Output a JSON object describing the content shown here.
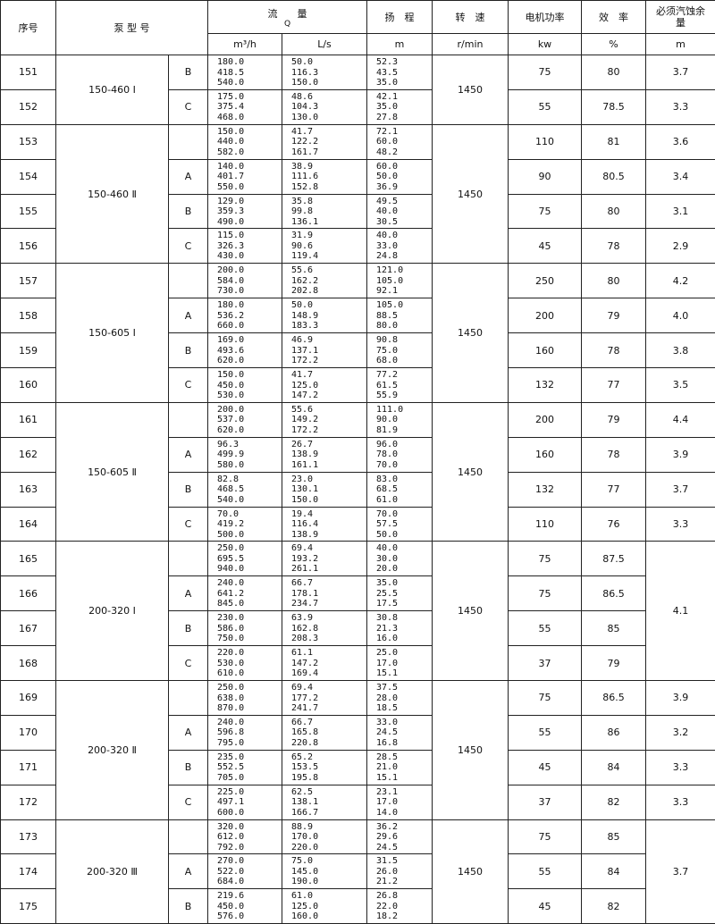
{
  "header": {
    "no": "序号",
    "model": "泵 型 号",
    "flow": "流　　量",
    "flow_symbol": "Q",
    "head": "扬　程",
    "speed": "转　速",
    "power": "电机功率",
    "efficiency": "效　率",
    "npsh": "必须汽蚀余量",
    "units": {
      "flow_m3h": "m³/h",
      "flow_ls": "L/s",
      "head": "m",
      "speed": "r/min",
      "power": "kw",
      "efficiency": "%",
      "npsh": "m"
    }
  },
  "groups": [
    {
      "model": "150-460 Ⅰ",
      "speed": "1450",
      "rows": [
        {
          "no": "151",
          "suffix": "B",
          "flow_m3h": [
            "180.0",
            "418.5",
            "540.0"
          ],
          "flow_ls": [
            "50.0",
            "116.3",
            "150.0"
          ],
          "head": [
            "52.3",
            "43.5",
            "35.0"
          ],
          "power": "75",
          "efficiency": "80",
          "npsh": "3.7"
        },
        {
          "no": "152",
          "suffix": "C",
          "flow_m3h": [
            "175.0",
            "375.4",
            "468.0"
          ],
          "flow_ls": [
            "48.6",
            "104.3",
            "130.0"
          ],
          "head": [
            "42.1",
            "35.0",
            "27.8"
          ],
          "power": "55",
          "efficiency": "78.5",
          "npsh": "3.3"
        }
      ]
    },
    {
      "model": "150-460 Ⅱ",
      "speed": "1450",
      "rows": [
        {
          "no": "153",
          "flow_m3h": [
            "150.0",
            "440.0",
            "582.0"
          ],
          "flow_ls": [
            "41.7",
            "122.2",
            "161.7"
          ],
          "head": [
            "72.1",
            "60.0",
            "48.2"
          ],
          "power": "110",
          "efficiency": "81",
          "npsh": "3.6"
        },
        {
          "no": "154",
          "suffix": "A",
          "flow_m3h": [
            "140.0",
            "401.7",
            "550.0"
          ],
          "flow_ls": [
            "38.9",
            "111.6",
            "152.8"
          ],
          "head": [
            "60.0",
            "50.0",
            "36.9"
          ],
          "power": "90",
          "efficiency": "80.5",
          "npsh": "3.4"
        },
        {
          "no": "155",
          "suffix": "B",
          "flow_m3h": [
            "129.0",
            "359.3",
            "490.0"
          ],
          "flow_ls": [
            "35.8",
            "99.8",
            "136.1"
          ],
          "head": [
            "49.5",
            "40.0",
            "30.5"
          ],
          "power": "75",
          "efficiency": "80",
          "npsh": "3.1"
        },
        {
          "no": "156",
          "suffix": "C",
          "flow_m3h": [
            "115.0",
            "326.3",
            "430.0"
          ],
          "flow_ls": [
            "31.9",
            "90.6",
            "119.4"
          ],
          "head": [
            "40.0",
            "33.0",
            "24.8"
          ],
          "power": "45",
          "efficiency": "78",
          "npsh": "2.9"
        }
      ]
    },
    {
      "model": "150-605 Ⅰ",
      "speed": "1450",
      "rows": [
        {
          "no": "157",
          "flow_m3h": [
            "200.0",
            "584.0",
            "730.0"
          ],
          "flow_ls": [
            "55.6",
            "162.2",
            "202.8"
          ],
          "head": [
            "121.0",
            "105.0",
            "92.1"
          ],
          "power": "250",
          "efficiency": "80",
          "npsh": "4.2"
        },
        {
          "no": "158",
          "suffix": "A",
          "flow_m3h": [
            "180.0",
            "536.2",
            "660.0"
          ],
          "flow_ls": [
            "50.0",
            "148.9",
            "183.3"
          ],
          "head": [
            "105.0",
            "88.5",
            "80.0"
          ],
          "power": "200",
          "efficiency": "79",
          "npsh": "4.0"
        },
        {
          "no": "159",
          "suffix": "B",
          "flow_m3h": [
            "169.0",
            "493.6",
            "620.0"
          ],
          "flow_ls": [
            "46.9",
            "137.1",
            "172.2"
          ],
          "head": [
            "90.8",
            "75.0",
            "68.0"
          ],
          "power": "160",
          "efficiency": "78",
          "npsh": "3.8"
        },
        {
          "no": "160",
          "suffix": "C",
          "flow_m3h": [
            "150.0",
            "450.0",
            "530.0"
          ],
          "flow_ls": [
            "41.7",
            "125.0",
            "147.2"
          ],
          "head": [
            "77.2",
            "61.5",
            "55.9"
          ],
          "power": "132",
          "efficiency": "77",
          "npsh": "3.5"
        }
      ]
    },
    {
      "model": "150-605 Ⅱ",
      "speed": "1450",
      "rows": [
        {
          "no": "161",
          "flow_m3h": [
            "200.0",
            "537.0",
            "620.0"
          ],
          "flow_ls": [
            "55.6",
            "149.2",
            "172.2"
          ],
          "head": [
            "111.0",
            "90.0",
            "81.9"
          ],
          "power": "200",
          "efficiency": "79",
          "npsh": "4.4"
        },
        {
          "no": "162",
          "suffix": "A",
          "flow_m3h": [
            "96.3",
            "499.9",
            "580.0"
          ],
          "flow_ls": [
            "26.7",
            "138.9",
            "161.1"
          ],
          "head": [
            "96.0",
            "78.0",
            "70.0"
          ],
          "power": "160",
          "efficiency": "78",
          "npsh": "3.9"
        },
        {
          "no": "163",
          "suffix": "B",
          "flow_m3h": [
            "82.8",
            "468.5",
            "540.0"
          ],
          "flow_ls": [
            "23.0",
            "130.1",
            "150.0"
          ],
          "head": [
            "83.0",
            "68.5",
            "61.0"
          ],
          "power": "132",
          "efficiency": "77",
          "npsh": "3.7"
        },
        {
          "no": "164",
          "suffix": "C",
          "flow_m3h": [
            "70.0",
            "419.2",
            "500.0"
          ],
          "flow_ls": [
            "19.4",
            "116.4",
            "138.9"
          ],
          "head": [
            "70.0",
            "57.5",
            "50.0"
          ],
          "power": "110",
          "efficiency": "76",
          "npsh": "3.3"
        }
      ]
    },
    {
      "model": "200-320 Ⅰ",
      "speed": "1450",
      "npsh": "4.1",
      "rows": [
        {
          "no": "165",
          "flow_m3h": [
            "250.0",
            "695.5",
            "940.0"
          ],
          "flow_ls": [
            "69.4",
            "193.2",
            "261.1"
          ],
          "head": [
            "40.0",
            "30.0",
            "20.0"
          ],
          "power": "75",
          "efficiency": "87.5"
        },
        {
          "no": "166",
          "suffix": "A",
          "flow_m3h": [
            "240.0",
            "641.2",
            "845.0"
          ],
          "flow_ls": [
            "66.7",
            "178.1",
            "234.7"
          ],
          "head": [
            "35.0",
            "25.5",
            "17.5"
          ],
          "power": "75",
          "efficiency": "86.5"
        },
        {
          "no": "167",
          "suffix": "B",
          "flow_m3h": [
            "230.0",
            "586.0",
            "750.0"
          ],
          "flow_ls": [
            "63.9",
            "162.8",
            "208.3"
          ],
          "head": [
            "30.8",
            "21.3",
            "16.0"
          ],
          "power": "55",
          "efficiency": "85"
        },
        {
          "no": "168",
          "suffix": "C",
          "flow_m3h": [
            "220.0",
            "530.0",
            "610.0"
          ],
          "flow_ls": [
            "61.1",
            "147.2",
            "169.4"
          ],
          "head": [
            "25.0",
            "17.0",
            "15.1"
          ],
          "power": "37",
          "efficiency": "79"
        }
      ]
    },
    {
      "model": "200-320 Ⅱ",
      "speed": "1450",
      "rows": [
        {
          "no": "169",
          "flow_m3h": [
            "250.0",
            "638.0",
            "870.0"
          ],
          "flow_ls": [
            "69.4",
            "177.2",
            "241.7"
          ],
          "head": [
            "37.5",
            "28.0",
            "18.5"
          ],
          "power": "75",
          "efficiency": "86.5",
          "npsh": "3.9"
        },
        {
          "no": "170",
          "suffix": "A",
          "flow_m3h": [
            "240.0",
            "596.8",
            "795.0"
          ],
          "flow_ls": [
            "66.7",
            "165.8",
            "220.8"
          ],
          "head": [
            "33.0",
            "24.5",
            "16.8"
          ],
          "power": "55",
          "efficiency": "86",
          "npsh": "3.2"
        },
        {
          "no": "171",
          "suffix": "B",
          "flow_m3h": [
            "235.0",
            "552.5",
            "705.0"
          ],
          "flow_ls": [
            "65.2",
            "153.5",
            "195.8"
          ],
          "head": [
            "28.5",
            "21.0",
            "15.1"
          ],
          "power": "45",
          "efficiency": "84",
          "npsh": "3.3"
        },
        {
          "no": "172",
          "suffix": "C",
          "flow_m3h": [
            "225.0",
            "497.1",
            "600.0"
          ],
          "flow_ls": [
            "62.5",
            "138.1",
            "166.7"
          ],
          "head": [
            "23.1",
            "17.0",
            "14.0"
          ],
          "power": "37",
          "efficiency": "82",
          "npsh": "3.3"
        }
      ]
    },
    {
      "model": "200-320 Ⅲ",
      "speed": "1450",
      "npsh": "3.7",
      "rows": [
        {
          "no": "173",
          "flow_m3h": [
            "320.0",
            "612.0",
            "792.0"
          ],
          "flow_ls": [
            "88.9",
            "170.0",
            "220.0"
          ],
          "head": [
            "36.2",
            "29.6",
            "24.5"
          ],
          "power": "75",
          "efficiency": "85"
        },
        {
          "no": "174",
          "suffix": "A",
          "flow_m3h": [
            "270.0",
            "522.0",
            "684.0"
          ],
          "flow_ls": [
            "75.0",
            "145.0",
            "190.0"
          ],
          "head": [
            "31.5",
            "26.0",
            "21.2"
          ],
          "power": "55",
          "efficiency": "84"
        },
        {
          "no": "175",
          "suffix": "B",
          "flow_m3h": [
            "219.6",
            "450.0",
            "576.0"
          ],
          "flow_ls": [
            "61.0",
            "125.0",
            "160.0"
          ],
          "head": [
            "26.8",
            "22.0",
            "18.2"
          ],
          "power": "45",
          "efficiency": "82"
        }
      ]
    }
  ]
}
